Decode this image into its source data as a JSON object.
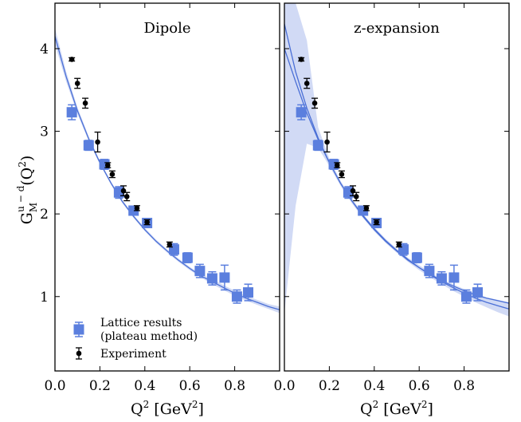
{
  "figure": {
    "ylabel_main": "G",
    "ylabel_sup": "u − d",
    "ylabel_sub": "M",
    "ylabel_tail": "(Q",
    "ylabel_tail_sup": "2",
    "ylabel_close": ")"
  },
  "colors": {
    "lattice": "#5b7fde",
    "band": "#c9d4f3",
    "fit_line": "#4a6fd6",
    "experiment": "#000000",
    "axis": "#000000"
  },
  "chart_data": [
    {
      "type": "scatter",
      "title": "Dipole",
      "xlabel": "Q² [GeV²]",
      "ylabel": "G_M^{u−d}(Q²)",
      "xlim": [
        0.0,
        1.0
      ],
      "ylim": [
        0.1,
        4.55
      ],
      "x_ticks": [
        0.0,
        0.2,
        0.4,
        0.6,
        0.8
      ],
      "x_tick_labels": [
        "0.0",
        "0.2",
        "0.4",
        "0.6",
        "0.8"
      ],
      "y_ticks": [
        1,
        2,
        3,
        4
      ],
      "y_tick_labels": [
        "1",
        "2",
        "3",
        "4"
      ],
      "grid": false,
      "legend": {
        "placement": "bottom-left",
        "entries": [
          {
            "series": "lattice",
            "lines": [
              "Lattice results",
              "(plateau method)"
            ]
          },
          {
            "series": "experiment",
            "lines": [
              "Experiment"
            ]
          }
        ]
      },
      "series": [
        {
          "name": "Lattice results (plateau method)",
          "marker": "square",
          "x": [
            0.075,
            0.15,
            0.22,
            0.285,
            0.35,
            0.41,
            0.53,
            0.59,
            0.645,
            0.7,
            0.755,
            0.81,
            0.86
          ],
          "y": [
            3.23,
            2.83,
            2.6,
            2.26,
            2.04,
            1.89,
            1.57,
            1.47,
            1.31,
            1.22,
            1.23,
            1.0,
            1.05
          ],
          "err": [
            0.09,
            0.06,
            0.06,
            0.07,
            0.05,
            0.05,
            0.07,
            0.06,
            0.08,
            0.08,
            0.15,
            0.08,
            0.1
          ]
        },
        {
          "name": "Experiment",
          "marker": "circle",
          "x": [
            0.075,
            0.1,
            0.135,
            0.19,
            0.235,
            0.255,
            0.305,
            0.32,
            0.365,
            0.41,
            0.51
          ],
          "y": [
            3.87,
            3.58,
            3.34,
            2.87,
            2.59,
            2.48,
            2.28,
            2.21,
            2.07,
            1.9,
            1.63
          ],
          "err": [
            0.02,
            0.06,
            0.06,
            0.12,
            0.03,
            0.04,
            0.06,
            0.05,
            0.03,
            0.03,
            0.03
          ]
        }
      ],
      "fit": {
        "name": "Dipole fit",
        "x": [
          0.0,
          0.05,
          0.1,
          0.15,
          0.2,
          0.25,
          0.3,
          0.35,
          0.4,
          0.45,
          0.5,
          0.55,
          0.6,
          0.65,
          0.7,
          0.75,
          0.8,
          0.85,
          0.9,
          0.95,
          1.0
        ],
        "y": [
          4.15,
          3.66,
          3.25,
          2.91,
          2.62,
          2.37,
          2.15,
          1.97,
          1.81,
          1.67,
          1.55,
          1.44,
          1.34,
          1.25,
          1.18,
          1.11,
          1.04,
          0.98,
          0.93,
          0.88,
          0.84
        ],
        "band_lower": [
          4.05,
          3.6,
          3.21,
          2.88,
          2.6,
          2.35,
          2.13,
          1.95,
          1.79,
          1.65,
          1.53,
          1.42,
          1.32,
          1.23,
          1.15,
          1.08,
          1.01,
          0.95,
          0.9,
          0.85,
          0.8
        ],
        "band_upper": [
          4.25,
          3.72,
          3.29,
          2.94,
          2.64,
          2.39,
          2.17,
          1.99,
          1.83,
          1.69,
          1.57,
          1.46,
          1.36,
          1.27,
          1.21,
          1.14,
          1.07,
          1.01,
          0.96,
          0.91,
          0.88
        ]
      }
    },
    {
      "type": "scatter",
      "title": "z-expansion",
      "xlabel": "Q² [GeV²]",
      "xlim": [
        0.0,
        1.0
      ],
      "ylim": [
        0.1,
        4.55
      ],
      "x_ticks": [
        0.0,
        0.2,
        0.4,
        0.6,
        0.8
      ],
      "x_tick_labels": [
        "0.0",
        "0.2",
        "0.4",
        "0.6",
        "0.8"
      ],
      "grid": false,
      "series": [
        {
          "name": "Lattice results (plateau method)",
          "marker": "square",
          "x": [
            0.075,
            0.15,
            0.22,
            0.285,
            0.35,
            0.41,
            0.53,
            0.59,
            0.645,
            0.7,
            0.755,
            0.81,
            0.86
          ],
          "y": [
            3.23,
            2.83,
            2.6,
            2.26,
            2.04,
            1.89,
            1.57,
            1.47,
            1.31,
            1.22,
            1.23,
            1.0,
            1.05
          ],
          "err": [
            0.09,
            0.06,
            0.06,
            0.07,
            0.05,
            0.05,
            0.07,
            0.06,
            0.08,
            0.08,
            0.15,
            0.08,
            0.1
          ]
        },
        {
          "name": "Experiment",
          "marker": "circle",
          "x": [
            0.075,
            0.1,
            0.135,
            0.19,
            0.235,
            0.255,
            0.305,
            0.32,
            0.365,
            0.41,
            0.51
          ],
          "y": [
            3.87,
            3.58,
            3.34,
            2.87,
            2.59,
            2.48,
            2.28,
            2.21,
            2.07,
            1.9,
            1.63
          ],
          "err": [
            0.02,
            0.06,
            0.06,
            0.12,
            0.03,
            0.04,
            0.06,
            0.05,
            0.03,
            0.03,
            0.03
          ]
        }
      ],
      "fit": {
        "name": "z-expansion fit",
        "x": [
          0.0,
          0.05,
          0.1,
          0.15,
          0.2,
          0.25,
          0.3,
          0.35,
          0.4,
          0.45,
          0.5,
          0.55,
          0.6,
          0.65,
          0.7,
          0.75,
          0.8,
          0.85,
          0.9,
          0.95,
          1.0
        ],
        "y": [
          4.0,
          3.6,
          3.22,
          2.9,
          2.62,
          2.37,
          2.16,
          1.97,
          1.81,
          1.67,
          1.55,
          1.44,
          1.35,
          1.26,
          1.18,
          1.11,
          1.04,
          0.98,
          0.93,
          0.89,
          0.85
        ],
        "y2": [
          4.3,
          3.72,
          3.28,
          2.92,
          2.62,
          2.37,
          2.16,
          1.98,
          1.82,
          1.68,
          1.56,
          1.45,
          1.35,
          1.27,
          1.19,
          1.13,
          1.07,
          1.02,
          0.98,
          0.95,
          0.92
        ],
        "band_lower": [
          0.8,
          2.1,
          2.85,
          2.8,
          2.58,
          2.34,
          2.13,
          1.95,
          1.79,
          1.65,
          1.53,
          1.42,
          1.32,
          1.23,
          1.15,
          1.07,
          1.0,
          0.93,
          0.87,
          0.81,
          0.76
        ],
        "band_upper": [
          4.55,
          4.55,
          4.1,
          3.05,
          2.67,
          2.4,
          2.19,
          2.0,
          1.84,
          1.7,
          1.58,
          1.47,
          1.38,
          1.29,
          1.21,
          1.15,
          1.09,
          1.04,
          0.99,
          0.96,
          0.93
        ]
      }
    }
  ]
}
